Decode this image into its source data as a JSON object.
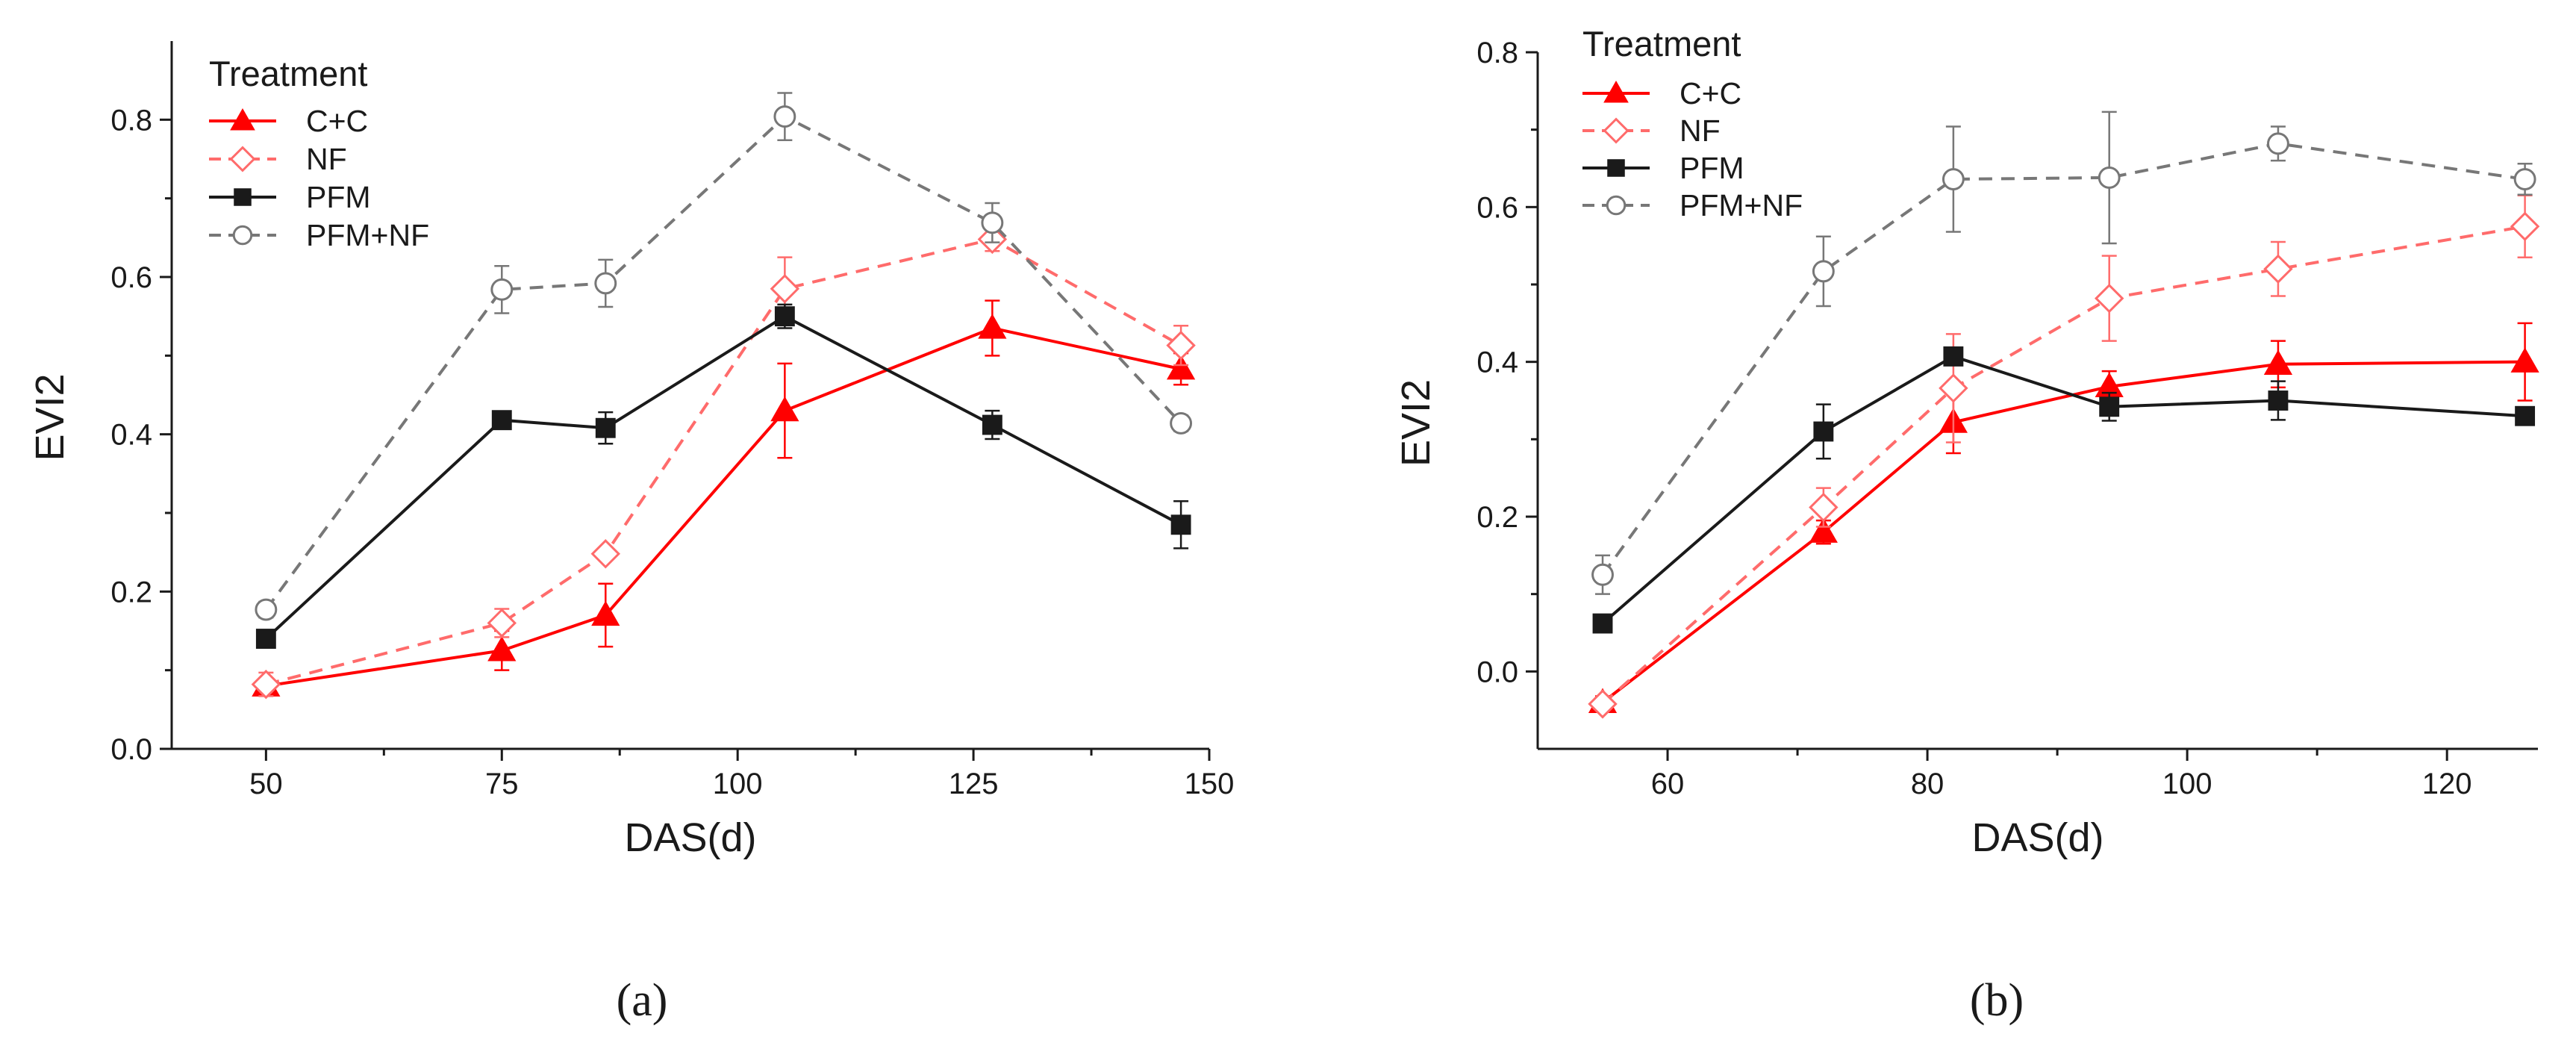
{
  "colors": {
    "red": "#ff0000",
    "lightred": "#ff6b6b",
    "black": "#1a1a1a",
    "gray": "#777777"
  },
  "chart_data": [
    {
      "type": "line",
      "caption": "(a)",
      "xlabel": "DAS(d)",
      "ylabel": "EVI2",
      "xlim": [
        40,
        150
      ],
      "ylim": [
        0.0,
        0.9
      ],
      "xticks": [
        50,
        75,
        100,
        125,
        150
      ],
      "yticks": [
        0.0,
        0.2,
        0.4,
        0.6,
        0.8
      ],
      "xtick_labels": [
        "50",
        "75",
        "100",
        "125",
        "150"
      ],
      "ytick_labels": [
        "0.0",
        "0.2",
        "0.4",
        "0.6",
        "0.8"
      ],
      "legend_title": "Treatment",
      "series": [
        {
          "name": "C+C",
          "color": "red",
          "dashed": false,
          "marker": "triangle-filled",
          "x": [
            50,
            75,
            86,
            105,
            127,
            147
          ],
          "y": [
            0.08,
            0.125,
            0.17,
            0.43,
            0.535,
            0.483
          ],
          "err": [
            0.01,
            0.025,
            0.04,
            0.06,
            0.035,
            0.02
          ]
        },
        {
          "name": "NF",
          "color": "lightred",
          "dashed": true,
          "marker": "diamond-open",
          "x": [
            50,
            75,
            86,
            105,
            127,
            147
          ],
          "y": [
            0.082,
            0.16,
            0.248,
            0.585,
            0.648,
            0.513
          ],
          "err": [
            0.015,
            0.018,
            0.008,
            0.04,
            0.015,
            0.025
          ]
        },
        {
          "name": "PFM",
          "color": "black",
          "dashed": false,
          "marker": "square-filled",
          "x": [
            50,
            75,
            86,
            105,
            127,
            147
          ],
          "y": [
            0.14,
            0.418,
            0.408,
            0.55,
            0.412,
            0.285
          ],
          "err": [
            0.008,
            0.01,
            0.02,
            0.015,
            0.018,
            0.03
          ]
        },
        {
          "name": "PFM+NF",
          "color": "gray",
          "dashed": true,
          "marker": "circle-open",
          "x": [
            50,
            75,
            86,
            105,
            127,
            147
          ],
          "y": [
            0.177,
            0.584,
            0.592,
            0.804,
            0.669,
            0.414
          ],
          "err": [
            0.01,
            0.03,
            0.03,
            0.03,
            0.025,
            0.01
          ]
        }
      ]
    },
    {
      "type": "line",
      "caption": "(b)",
      "xlabel": "DAS(d)",
      "ylabel": "EVI2",
      "xlim": [
        50,
        127
      ],
      "ylim": [
        -0.1,
        0.8
      ],
      "xticks": [
        60,
        80,
        100,
        120
      ],
      "yticks": [
        0.0,
        0.2,
        0.4,
        0.6,
        0.8
      ],
      "xtick_labels": [
        "60",
        "80",
        "100",
        "120"
      ],
      "ytick_labels": [
        "0.0",
        "0.2",
        "0.4",
        "0.6",
        "0.8"
      ],
      "legend_title": "Treatment",
      "series": [
        {
          "name": "C+C",
          "color": "red",
          "dashed": false,
          "marker": "triangle-filled",
          "x": [
            55,
            72,
            82,
            94,
            107,
            126
          ],
          "y": [
            -0.04,
            0.18,
            0.322,
            0.368,
            0.397,
            0.4
          ],
          "err": [
            0.008,
            0.015,
            0.04,
            0.02,
            0.03,
            0.05
          ]
        },
        {
          "name": "NF",
          "color": "lightred",
          "dashed": true,
          "marker": "diamond-open",
          "x": [
            55,
            72,
            82,
            94,
            107,
            126
          ],
          "y": [
            -0.042,
            0.212,
            0.366,
            0.482,
            0.52,
            0.575
          ],
          "err": [
            0.008,
            0.025,
            0.07,
            0.055,
            0.035,
            0.04
          ]
        },
        {
          "name": "PFM",
          "color": "black",
          "dashed": false,
          "marker": "square-filled",
          "x": [
            55,
            72,
            82,
            94,
            107,
            126
          ],
          "y": [
            0.062,
            0.31,
            0.407,
            0.342,
            0.35,
            0.33
          ],
          "err": [
            0.006,
            0.035,
            0.01,
            0.018,
            0.025,
            0.008
          ]
        },
        {
          "name": "PFM+NF",
          "color": "gray",
          "dashed": true,
          "marker": "circle-open",
          "x": [
            55,
            72,
            82,
            94,
            107,
            126
          ],
          "y": [
            0.125,
            0.517,
            0.636,
            0.638,
            0.682,
            0.636
          ],
          "err": [
            0.025,
            0.045,
            0.068,
            0.085,
            0.022,
            0.02
          ]
        }
      ]
    }
  ]
}
